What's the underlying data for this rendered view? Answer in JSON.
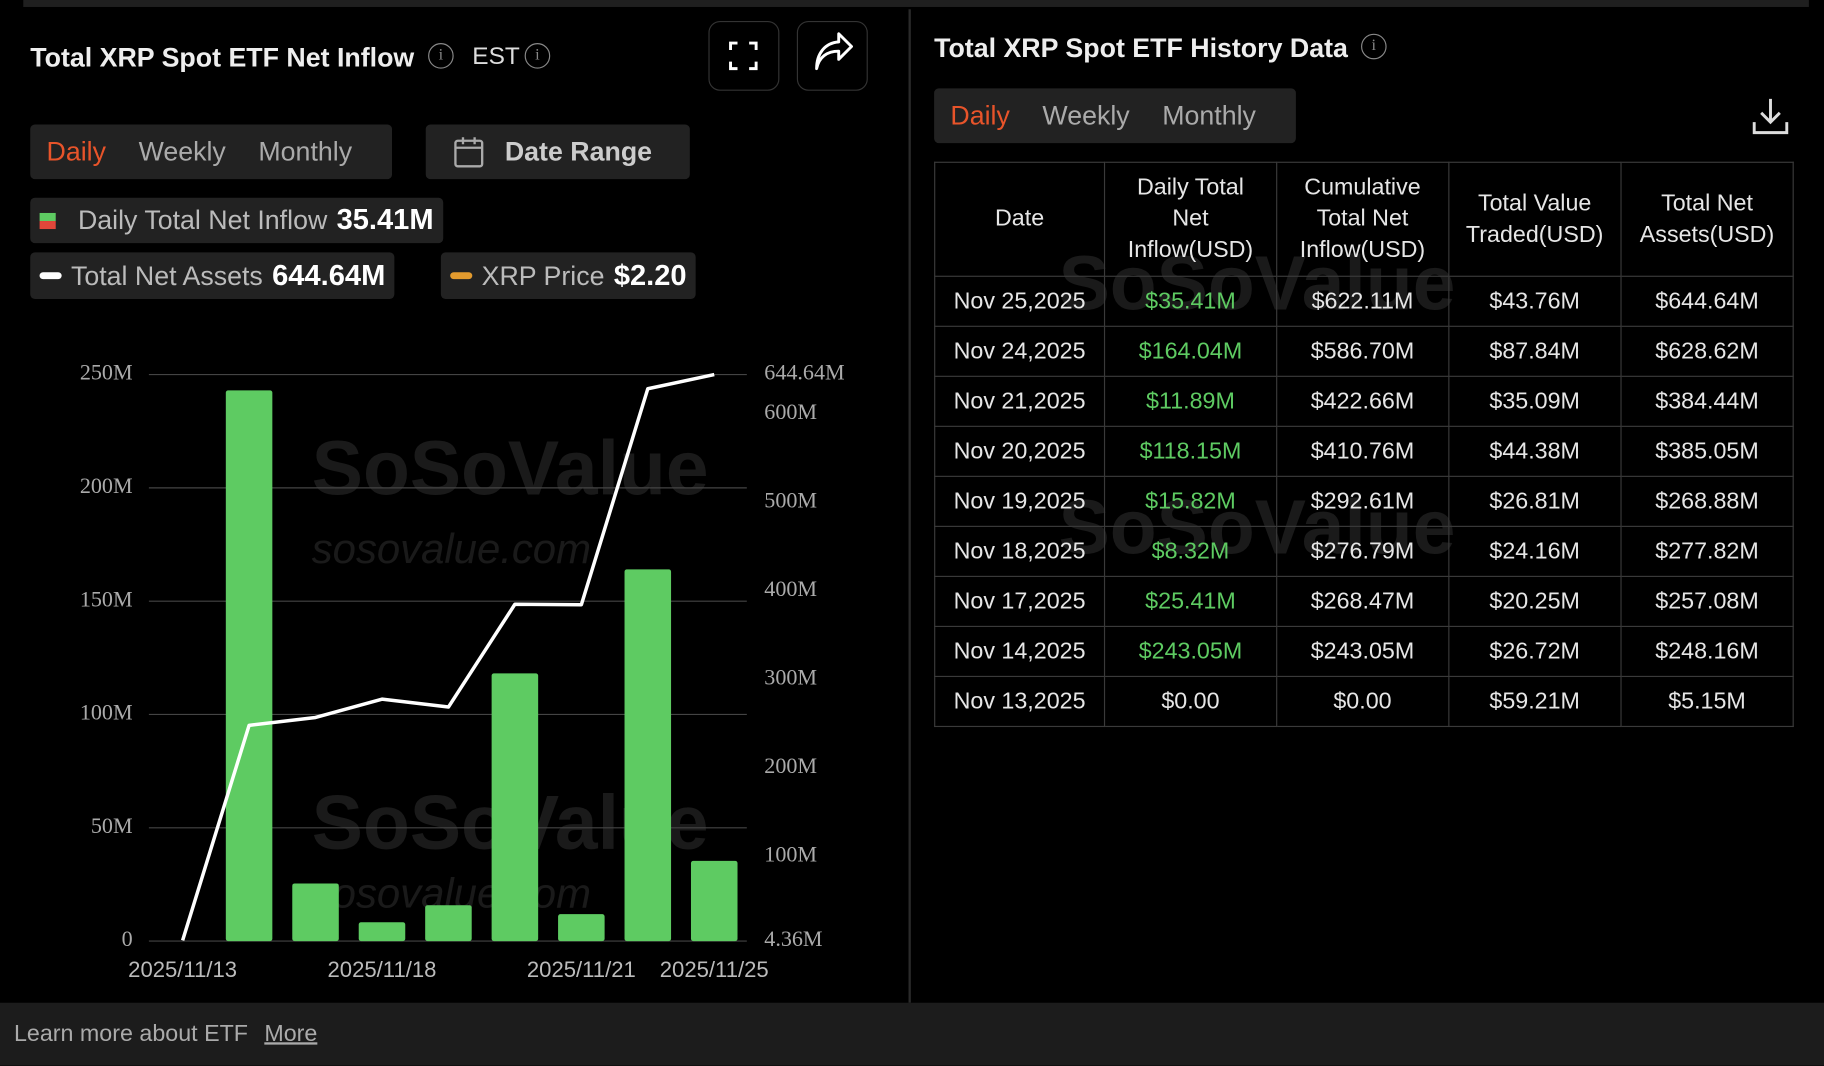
{
  "left_panel": {
    "title": "Total XRP Spot ETF Net Inflow",
    "timezone": "EST",
    "tabs": [
      "Daily",
      "Weekly",
      "Monthly"
    ],
    "date_range": "Date Range"
  },
  "chart_data": {
    "type": "bar",
    "categories": [
      "2025/11/13",
      null,
      null,
      "2025/11/18",
      null,
      null,
      "2025/11/21",
      null,
      "2025/11/25"
    ],
    "series": [
      {
        "name": "Daily Total Net Inflow",
        "color": "#5ecb62",
        "values": [
          0,
          243.05,
          25.41,
          8.32,
          15.82,
          118.15,
          11.89,
          164.04,
          35.41
        ],
        "legend_value": "35.41M"
      },
      {
        "name": "Total Net Assets",
        "type": "line",
        "axis": "y2",
        "color": "#ffffff",
        "values": [
          5.15,
          248.16,
          257.08,
          277.82,
          268.88,
          385.05,
          384.44,
          628.62,
          644.64
        ],
        "legend_value": "644.64M"
      }
    ],
    "price_legend": {
      "name": "XRP Price",
      "color": "#e39b2e",
      "value": "$2.20"
    },
    "ylim": [
      0,
      250
    ],
    "yticks": [
      0,
      {
        "value": 50,
        "label": "50M"
      },
      {
        "value": 100,
        "label": "100M"
      },
      {
        "value": 150,
        "label": "150M"
      },
      {
        "value": 200,
        "label": "200M"
      },
      {
        "value": 250,
        "label": "250M"
      }
    ],
    "y2lim": [
      4.36,
      644.64
    ],
    "y2ticks": [
      {
        "value": 4.36,
        "label": "4.36M"
      },
      {
        "value": 100,
        "label": "100M"
      },
      {
        "value": 200,
        "label": "200M"
      },
      {
        "value": 300,
        "label": "300M"
      },
      {
        "value": 400,
        "label": "400M"
      },
      {
        "value": 500,
        "label": "500M"
      },
      {
        "value": 600,
        "label": "600M"
      },
      {
        "value": 644.64,
        "label": "644.64M"
      }
    ],
    "grid": true
  },
  "watermark": {
    "brand": "SoSoValue",
    "domain": "sosovalue.com"
  },
  "right_panel": {
    "title": "Total XRP Spot ETF History Data",
    "tabs": [
      "Daily",
      "Weekly",
      "Monthly"
    ]
  },
  "table": {
    "columns": [
      [
        "Date"
      ],
      [
        "Daily Total",
        "Net",
        "Inflow(USD)"
      ],
      [
        "Cumulative",
        "Total Net",
        "Inflow(USD)"
      ],
      [
        "Total Value",
        "Traded(USD)"
      ],
      [
        "Total Net",
        "Assets(USD)"
      ]
    ],
    "rows": [
      [
        "Nov 25,2025",
        "$35.41M",
        "$622.11M",
        "$43.76M",
        "$644.64M"
      ],
      [
        "Nov 24,2025",
        "$164.04M",
        "$586.70M",
        "$87.84M",
        "$628.62M"
      ],
      [
        "Nov 21,2025",
        "$11.89M",
        "$422.66M",
        "$35.09M",
        "$384.44M"
      ],
      [
        "Nov 20,2025",
        "$118.15M",
        "$410.76M",
        "$44.38M",
        "$385.05M"
      ],
      [
        "Nov 19,2025",
        "$15.82M",
        "$292.61M",
        "$26.81M",
        "$268.88M"
      ],
      [
        "Nov 18,2025",
        "$8.32M",
        "$276.79M",
        "$24.16M",
        "$277.82M"
      ],
      [
        "Nov 17,2025",
        "$25.41M",
        "$268.47M",
        "$20.25M",
        "$257.08M"
      ],
      [
        "Nov 14,2025",
        "$243.05M",
        "$243.05M",
        "$26.72M",
        "$248.16M"
      ],
      [
        "Nov 13,2025",
        "$0.00",
        "$0.00",
        "$59.21M",
        "$5.15M"
      ]
    ]
  },
  "footer": {
    "text": "Learn more about ETF",
    "link": "More"
  }
}
